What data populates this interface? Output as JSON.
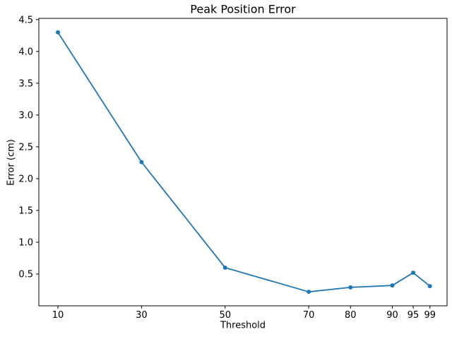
{
  "figure": {
    "background_color": "#ffffff",
    "text_color": "#000000"
  },
  "chart_data": {
    "type": "line",
    "title": "Peak Position Error",
    "xlabel": "Threshold",
    "ylabel": "Error (cm)",
    "x": [
      10,
      30,
      50,
      70,
      80,
      90,
      95,
      99
    ],
    "y": [
      4.3,
      2.26,
      0.6,
      0.22,
      0.29,
      0.32,
      0.52,
      0.31
    ],
    "line_color": "#1f77b4",
    "marker": "circle",
    "xticks": [
      10,
      30,
      50,
      70,
      80,
      90,
      95,
      99
    ],
    "xtick_labels": [
      "10",
      "30",
      "50",
      "70",
      "80",
      "90",
      "95",
      "99"
    ],
    "yticks": [
      0.5,
      1.0,
      1.5,
      2.0,
      2.5,
      3.0,
      3.5,
      4.0,
      4.5
    ],
    "ytick_labels": [
      "0.5",
      "1.0",
      "1.5",
      "2.0",
      "2.5",
      "3.0",
      "3.5",
      "4.0",
      "4.5"
    ],
    "xlim": [
      5.44,
      103.1
    ],
    "ylim": [
      0,
      4.52
    ],
    "grid": false,
    "legend": "none"
  }
}
